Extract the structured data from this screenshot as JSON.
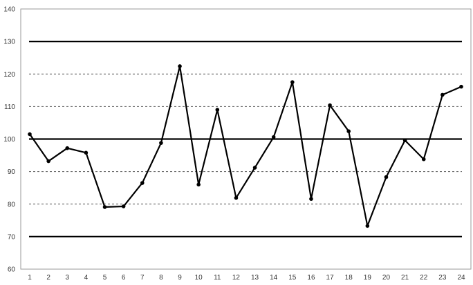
{
  "chart_data": {
    "type": "line",
    "title": "",
    "xlabel": "",
    "ylabel": "",
    "categories": [
      "1",
      "2",
      "3",
      "4",
      "5",
      "6",
      "7",
      "8",
      "9",
      "10",
      "11",
      "12",
      "13",
      "14",
      "15",
      "16",
      "17",
      "18",
      "19",
      "20",
      "21",
      "22",
      "23",
      "24"
    ],
    "series": [
      {
        "values": [
          101.5,
          93.2,
          97.2,
          95.8,
          79.1,
          79.3,
          86.5,
          98.8,
          122.4,
          86.0,
          109.0,
          81.9,
          91.2,
          100.6,
          117.5,
          81.6,
          110.4,
          102.4,
          73.3,
          88.3,
          99.6,
          93.8,
          113.6,
          116.1
        ],
        "color": "#000000"
      }
    ],
    "ylim": [
      60,
      140
    ],
    "yticks": [
      60,
      70,
      80,
      90,
      100,
      110,
      120,
      130,
      140
    ],
    "reference_lines": [
      {
        "y": 130,
        "style": "solid"
      },
      {
        "y": 100,
        "style": "solid"
      },
      {
        "y": 70,
        "style": "solid"
      },
      {
        "y": 120,
        "style": "dashed"
      },
      {
        "y": 110,
        "style": "dashed"
      },
      {
        "y": 90,
        "style": "dashed"
      },
      {
        "y": 80,
        "style": "dashed"
      }
    ],
    "grid": false,
    "legend": "none"
  }
}
